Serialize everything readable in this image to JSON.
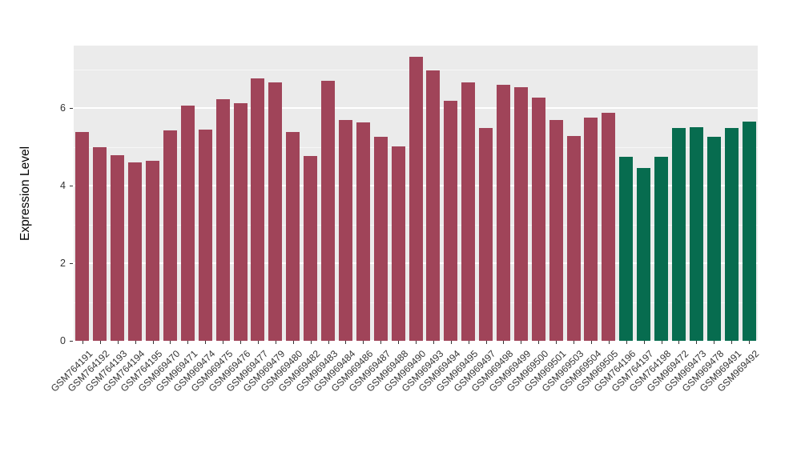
{
  "chart_data": {
    "type": "bar",
    "title": "",
    "xlabel": "",
    "ylabel": "Expression Level",
    "ylim": [
      0,
      7.62
    ],
    "yticks": [
      0,
      2,
      4,
      6
    ],
    "yticks_minor": [
      1,
      3,
      5,
      7
    ],
    "grid": "on",
    "legend": "none",
    "panel_background": "#EBEBEB",
    "grid_color": "#FFFFFF",
    "palette": {
      "A": "#A04459",
      "B": "#076C4F"
    },
    "categories": [
      "GSM764191",
      "GSM764192",
      "GSM764193",
      "GSM764194",
      "GSM764195",
      "GSM969470",
      "GSM969471",
      "GSM969474",
      "GSM969475",
      "GSM969476",
      "GSM969477",
      "GSM969479",
      "GSM969480",
      "GSM969482",
      "GSM969483",
      "GSM969484",
      "GSM969486",
      "GSM969487",
      "GSM969488",
      "GSM969490",
      "GSM969493",
      "GSM969494",
      "GSM969495",
      "GSM969497",
      "GSM969498",
      "GSM969499",
      "GSM969500",
      "GSM969501",
      "GSM969503",
      "GSM969504",
      "GSM969505",
      "GSM764196",
      "GSM764197",
      "GSM764198",
      "GSM969472",
      "GSM969473",
      "GSM969478",
      "GSM969491",
      "GSM969492"
    ],
    "values": [
      5.4,
      5.0,
      4.8,
      4.6,
      4.65,
      5.44,
      6.08,
      5.46,
      6.23,
      6.13,
      6.77,
      6.67,
      5.38,
      4.77,
      6.71,
      5.69,
      5.63,
      5.27,
      5.02,
      7.33,
      6.98,
      6.19,
      6.67,
      5.5,
      6.6,
      6.54,
      6.27,
      5.71,
      5.29,
      5.77,
      5.88,
      4.75,
      4.46,
      4.75,
      5.5,
      5.52,
      5.27,
      5.5,
      5.65
    ],
    "groups": [
      "A",
      "A",
      "A",
      "A",
      "A",
      "A",
      "A",
      "A",
      "A",
      "A",
      "A",
      "A",
      "A",
      "A",
      "A",
      "A",
      "A",
      "A",
      "A",
      "A",
      "A",
      "A",
      "A",
      "A",
      "A",
      "A",
      "A",
      "A",
      "A",
      "A",
      "A",
      "B",
      "B",
      "B",
      "B",
      "B",
      "B",
      "B",
      "B"
    ]
  }
}
